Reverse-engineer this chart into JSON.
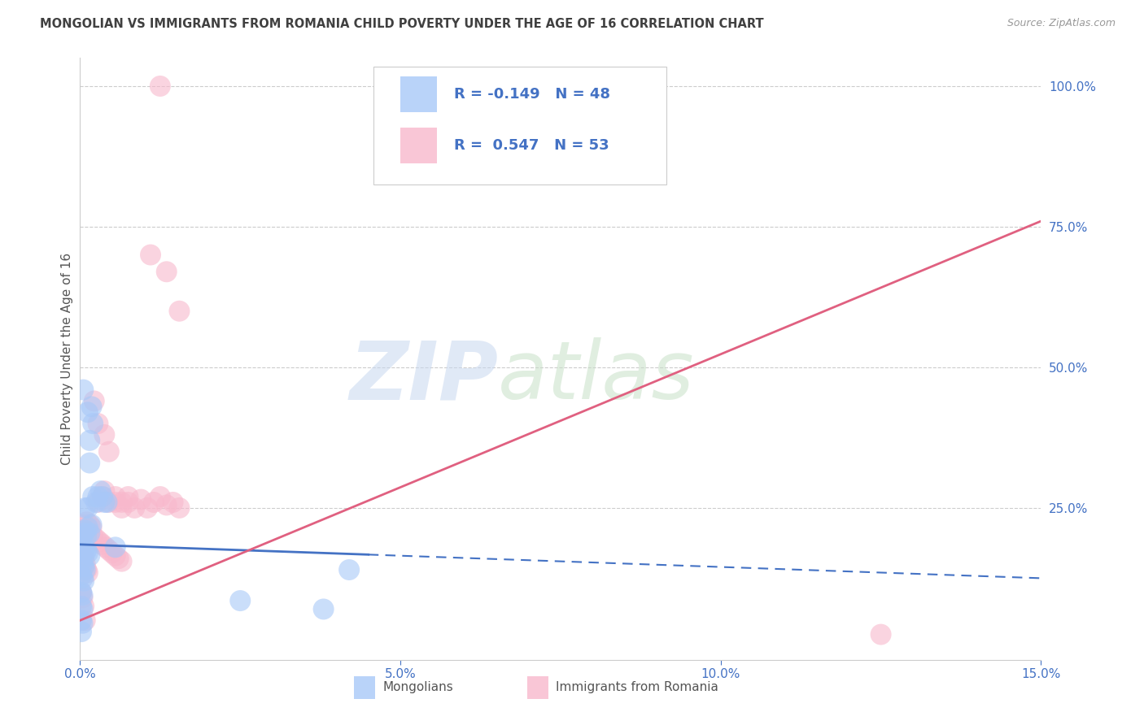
{
  "title": "MONGOLIAN VS IMMIGRANTS FROM ROMANIA CHILD POVERTY UNDER THE AGE OF 16 CORRELATION CHART",
  "source": "Source: ZipAtlas.com",
  "xlabel_ticks": [
    "0.0%",
    "5.0%",
    "10.0%",
    "15.0%"
  ],
  "xlabel_tick_vals": [
    0.0,
    5.0,
    10.0,
    15.0
  ],
  "ylabel_ticks": [
    "25.0%",
    "50.0%",
    "75.0%",
    "100.0%"
  ],
  "ylabel_tick_vals": [
    25.0,
    50.0,
    75.0,
    100.0
  ],
  "ylabel_label": "Child Poverty Under the Age of 16",
  "xlim": [
    0.0,
    15.0
  ],
  "ylim": [
    -2.0,
    105.0
  ],
  "legend_label1": "Mongolians",
  "legend_label2": "Immigrants from Romania",
  "mongolian_color": "#a8c8f8",
  "romania_color": "#f8b8cc",
  "mongolian_line_color": "#4472c4",
  "romania_line_color": "#e06080",
  "legend_text_color": "#4472c4",
  "background_color": "#ffffff",
  "grid_color": "#cccccc",
  "axis_label_color": "#4472c4",
  "title_color": "#404040",
  "mongolian_points": [
    [
      0.05,
      46.0
    ],
    [
      0.12,
      42.0
    ],
    [
      0.15,
      37.0
    ],
    [
      0.15,
      33.0
    ],
    [
      0.18,
      43.0
    ],
    [
      0.2,
      40.0
    ],
    [
      0.08,
      25.0
    ],
    [
      0.12,
      25.0
    ],
    [
      0.2,
      27.0
    ],
    [
      0.25,
      26.0
    ],
    [
      0.28,
      27.0
    ],
    [
      0.32,
      28.0
    ],
    [
      0.35,
      27.0
    ],
    [
      0.38,
      26.0
    ],
    [
      0.42,
      26.0
    ],
    [
      0.02,
      20.0
    ],
    [
      0.04,
      19.5
    ],
    [
      0.06,
      20.5
    ],
    [
      0.08,
      21.0
    ],
    [
      0.1,
      20.0
    ],
    [
      0.12,
      21.5
    ],
    [
      0.15,
      20.5
    ],
    [
      0.18,
      22.0
    ],
    [
      0.02,
      18.5
    ],
    [
      0.04,
      18.0
    ],
    [
      0.06,
      17.5
    ],
    [
      0.08,
      17.0
    ],
    [
      0.1,
      17.5
    ],
    [
      0.12,
      17.0
    ],
    [
      0.15,
      16.5
    ],
    [
      0.02,
      15.5
    ],
    [
      0.04,
      15.0
    ],
    [
      0.06,
      14.5
    ],
    [
      0.08,
      14.0
    ],
    [
      0.02,
      13.0
    ],
    [
      0.04,
      12.5
    ],
    [
      0.06,
      12.0
    ],
    [
      0.02,
      10.0
    ],
    [
      0.04,
      9.5
    ],
    [
      0.02,
      7.5
    ],
    [
      0.04,
      7.0
    ],
    [
      0.02,
      5.0
    ],
    [
      0.04,
      4.5
    ],
    [
      0.02,
      3.0
    ],
    [
      4.2,
      14.0
    ],
    [
      2.5,
      8.5
    ],
    [
      3.8,
      7.0
    ],
    [
      0.55,
      18.0
    ]
  ],
  "romania_points": [
    [
      1.25,
      100.0
    ],
    [
      1.1,
      70.0
    ],
    [
      1.35,
      67.0
    ],
    [
      1.55,
      60.0
    ],
    [
      0.22,
      44.0
    ],
    [
      0.28,
      40.0
    ],
    [
      0.38,
      38.0
    ],
    [
      0.45,
      35.0
    ],
    [
      0.38,
      28.0
    ],
    [
      0.55,
      27.0
    ],
    [
      0.65,
      26.0
    ],
    [
      0.75,
      27.0
    ],
    [
      0.28,
      26.0
    ],
    [
      0.35,
      27.0
    ],
    [
      0.45,
      26.0
    ],
    [
      0.55,
      26.0
    ],
    [
      0.65,
      25.0
    ],
    [
      0.75,
      26.0
    ],
    [
      0.85,
      25.0
    ],
    [
      0.95,
      26.5
    ],
    [
      1.05,
      25.0
    ],
    [
      1.15,
      26.0
    ],
    [
      1.25,
      27.0
    ],
    [
      1.35,
      25.5
    ],
    [
      1.45,
      26.0
    ],
    [
      1.55,
      25.0
    ],
    [
      0.05,
      22.0
    ],
    [
      0.08,
      21.0
    ],
    [
      0.1,
      22.5
    ],
    [
      0.12,
      21.0
    ],
    [
      0.15,
      22.0
    ],
    [
      0.18,
      21.5
    ],
    [
      0.2,
      20.0
    ],
    [
      0.25,
      19.5
    ],
    [
      0.3,
      19.0
    ],
    [
      0.35,
      18.5
    ],
    [
      0.4,
      18.0
    ],
    [
      0.45,
      17.5
    ],
    [
      0.5,
      17.0
    ],
    [
      0.55,
      16.5
    ],
    [
      0.6,
      16.0
    ],
    [
      0.65,
      15.5
    ],
    [
      0.02,
      18.0
    ],
    [
      0.04,
      17.0
    ],
    [
      0.06,
      16.0
    ],
    [
      0.08,
      15.0
    ],
    [
      0.1,
      14.0
    ],
    [
      0.12,
      13.5
    ],
    [
      0.02,
      10.0
    ],
    [
      0.04,
      9.0
    ],
    [
      0.06,
      7.5
    ],
    [
      0.08,
      5.0
    ],
    [
      12.5,
      2.5
    ]
  ],
  "mon_line_x0": 0.0,
  "mon_line_y0": 18.5,
  "mon_line_x1": 15.0,
  "mon_line_y1": 12.5,
  "mon_solid_x_end": 4.5,
  "rom_line_x0": 0.0,
  "rom_line_y0": 5.0,
  "rom_line_x1": 15.0,
  "rom_line_y1": 76.0
}
